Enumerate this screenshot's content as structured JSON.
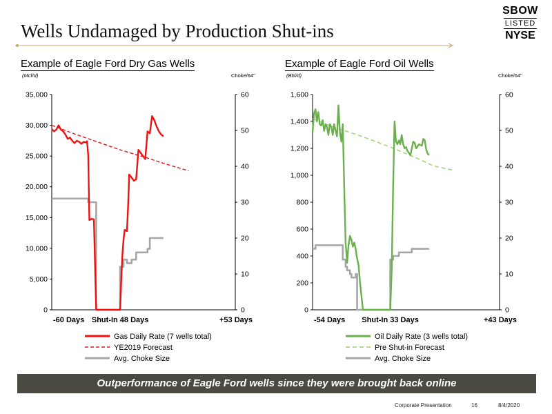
{
  "header": {
    "title": "Wells Undamaged by Production Shut-ins"
  },
  "logo": {
    "line1": "SBOW",
    "line2": "LISTED",
    "line3": "NYSE"
  },
  "colors": {
    "gas": "#ee1111",
    "oil": "#6ab04c",
    "oil_forecast": "#99d466",
    "choke": "#a6a6a6"
  },
  "chart_data": [
    {
      "type": "line",
      "title": "Example of Eagle Ford Dry Gas Wells",
      "ylabel": "(Mcf/d)",
      "y2label": "Choke/64\"",
      "ylim": [
        0,
        35000
      ],
      "y2lim": [
        0,
        60
      ],
      "yticks": [
        "0",
        "5,000",
        "10,000",
        "15,000",
        "20,000",
        "25,000",
        "30,000",
        "35,000"
      ],
      "y2ticks": [
        "0",
        "10",
        "20",
        "30",
        "40",
        "50",
        "60"
      ],
      "xlim": [
        -60,
        101
      ],
      "xtick_values": [
        -60,
        0,
        101
      ],
      "xticks": [
        "-60 Days",
        "Shut-In 48 Days",
        "+53 Days"
      ],
      "legend": "below",
      "series": [
        {
          "name": "Gas Daily Rate (7 wells total)",
          "style": "solid",
          "axis": "left",
          "points": [
            [
              -60,
              29400
            ],
            [
              -58,
              29000
            ],
            [
              -56,
              29300
            ],
            [
              -54,
              30000
            ],
            [
              -52,
              29300
            ],
            [
              -50,
              29000
            ],
            [
              -48,
              28500
            ],
            [
              -46,
              27800
            ],
            [
              -44,
              28000
            ],
            [
              -42,
              27500
            ],
            [
              -40,
              27100
            ],
            [
              -38,
              27500
            ],
            [
              -36,
              27300
            ],
            [
              -34,
              27000
            ],
            [
              -32,
              27300
            ],
            [
              -30,
              27200
            ],
            [
              -29,
              27400
            ],
            [
              -28,
              25000
            ],
            [
              -27,
              14600
            ],
            [
              -25,
              14800
            ],
            [
              -23,
              14700
            ],
            [
              -22,
              7000
            ],
            [
              -21,
              0
            ],
            [
              0,
              0
            ],
            [
              1,
              5000
            ],
            [
              2,
              9000
            ],
            [
              3,
              11500
            ],
            [
              4,
              13000
            ],
            [
              6,
              12800
            ],
            [
              7,
              17000
            ],
            [
              8,
              22000
            ],
            [
              10,
              21500
            ],
            [
              12,
              21000
            ],
            [
              14,
              21200
            ],
            [
              16,
              26000
            ],
            [
              18,
              25500
            ],
            [
              20,
              25000
            ],
            [
              22,
              24500
            ],
            [
              24,
              29000
            ],
            [
              26,
              28700
            ],
            [
              28,
              31500
            ],
            [
              30,
              30800
            ],
            [
              32,
              29800
            ],
            [
              34,
              29000
            ],
            [
              36,
              28500
            ],
            [
              38,
              28200
            ]
          ]
        },
        {
          "name": "YE2019 Forecast",
          "style": "dashed",
          "axis": "left",
          "points": [
            [
              -60,
              30000
            ],
            [
              -40,
              28600
            ],
            [
              -20,
              27300
            ],
            [
              0,
              26000
            ],
            [
              20,
              24900
            ],
            [
              40,
              23700
            ],
            [
              60,
              22600
            ]
          ]
        },
        {
          "name": "Avg. Choke Size",
          "style": "solid",
          "axis": "right",
          "points": [
            [
              -60,
              31
            ],
            [
              -28,
              31
            ],
            [
              -28,
              30
            ],
            [
              -21,
              30
            ],
            [
              -21,
              0
            ],
            [
              0,
              0
            ],
            [
              0,
              12
            ],
            [
              3,
              12
            ],
            [
              3,
              14
            ],
            [
              6,
              14
            ],
            [
              6,
              13
            ],
            [
              10,
              13
            ],
            [
              10,
              14
            ],
            [
              14,
              14
            ],
            [
              14,
              16
            ],
            [
              24,
              16
            ],
            [
              24,
              17
            ],
            [
              26,
              17
            ],
            [
              26,
              20
            ],
            [
              38,
              20
            ]
          ]
        }
      ]
    },
    {
      "type": "line",
      "title": "Example of Eagle Ford Oil Wells",
      "ylabel": "(Bbl/d)",
      "y2label": "Choke/64\"",
      "ylim": [
        0,
        1600
      ],
      "y2lim": [
        0,
        60
      ],
      "yticks": [
        "0",
        "200",
        "400",
        "600",
        "800",
        "1,000",
        "1,200",
        "1,400",
        "1,600"
      ],
      "y2ticks": [
        "0",
        "10",
        "20",
        "30",
        "40",
        "50",
        "60"
      ],
      "xlim": [
        -54,
        76
      ],
      "xtick_values": [
        -54,
        0,
        76
      ],
      "xticks": [
        "-54 Days",
        "Shut-In 33 Days",
        "+43 Days"
      ],
      "legend": "below",
      "series": [
        {
          "name": "Oil Daily Rate (3 wells total)",
          "style": "solid",
          "axis": "left",
          "points": [
            [
              -54,
              1320
            ],
            [
              -53,
              1460
            ],
            [
              -52,
              1490
            ],
            [
              -51,
              1400
            ],
            [
              -50,
              1470
            ],
            [
              -49,
              1380
            ],
            [
              -48,
              1370
            ],
            [
              -47,
              1410
            ],
            [
              -46,
              1330
            ],
            [
              -45,
              1380
            ],
            [
              -44,
              1360
            ],
            [
              -43,
              1300
            ],
            [
              -42,
              1380
            ],
            [
              -41,
              1360
            ],
            [
              -40,
              1300
            ],
            [
              -39,
              1380
            ],
            [
              -38,
              1330
            ],
            [
              -37,
              1290
            ],
            [
              -36,
              1520
            ],
            [
              -35,
              1320
            ],
            [
              -34,
              1250
            ],
            [
              -33,
              1380
            ],
            [
              -32,
              900
            ],
            [
              -31,
              500
            ],
            [
              -30,
              350
            ],
            [
              -29,
              480
            ],
            [
              -28,
              550
            ],
            [
              -27,
              520
            ],
            [
              -26,
              470
            ],
            [
              -25,
              500
            ],
            [
              -24,
              450
            ],
            [
              -23,
              380
            ],
            [
              -22,
              330
            ],
            [
              -21,
              200
            ],
            [
              -20,
              100
            ],
            [
              -19,
              0
            ],
            [
              0,
              0
            ],
            [
              1,
              300
            ],
            [
              2,
              900
            ],
            [
              3,
              1400
            ],
            [
              4,
              1250
            ],
            [
              5,
              1230
            ],
            [
              6,
              1260
            ],
            [
              7,
              1230
            ],
            [
              8,
              1300
            ],
            [
              9,
              1230
            ],
            [
              10,
              1200
            ],
            [
              11,
              1210
            ],
            [
              12,
              1180
            ],
            [
              14,
              1150
            ],
            [
              16,
              1250
            ],
            [
              17,
              1240
            ],
            [
              18,
              1200
            ],
            [
              20,
              1230
            ],
            [
              22,
              1220
            ],
            [
              23,
              1270
            ],
            [
              24,
              1260
            ],
            [
              25,
              1190
            ],
            [
              26,
              1160
            ],
            [
              27,
              1150
            ]
          ]
        },
        {
          "name": "Pre Shut-in Forecast",
          "style": "dashed",
          "axis": "left",
          "points": [
            [
              -54,
              1420
            ],
            [
              -40,
              1360
            ],
            [
              -20,
              1290
            ],
            [
              0,
              1210
            ],
            [
              20,
              1120
            ],
            [
              30,
              1070
            ],
            [
              43,
              1040
            ]
          ]
        },
        {
          "name": "Avg. Choke Size",
          "style": "solid",
          "axis": "right",
          "points": [
            [
              -54,
              17
            ],
            [
              -52,
              17
            ],
            [
              -52,
              18
            ],
            [
              -33,
              18
            ],
            [
              -33,
              14
            ],
            [
              -31,
              14
            ],
            [
              -31,
              12
            ],
            [
              -30,
              12
            ],
            [
              -30,
              11
            ],
            [
              -28,
              11
            ],
            [
              -28,
              10
            ],
            [
              -27,
              10
            ],
            [
              -27,
              9
            ],
            [
              -24,
              9
            ],
            [
              -24,
              10
            ],
            [
              -23,
              10
            ],
            [
              -23,
              0
            ],
            [
              0,
              0
            ],
            [
              0,
              14
            ],
            [
              2,
              14
            ],
            [
              2,
              15
            ],
            [
              6,
              15
            ],
            [
              6,
              16
            ],
            [
              15,
              16
            ],
            [
              15,
              17
            ],
            [
              27,
              17
            ]
          ]
        }
      ]
    }
  ],
  "banner": {
    "text": "Outperformance of Eagle Ford wells since they were brought back online"
  },
  "footer": {
    "label": "Corporate Presentation",
    "page": "16",
    "date": "8/4/2020"
  }
}
